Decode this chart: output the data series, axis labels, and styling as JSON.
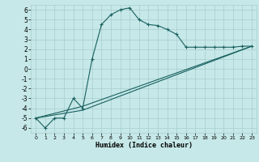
{
  "xlabel": "Humidex (Indice chaleur)",
  "xlim": [
    -0.5,
    23.5
  ],
  "ylim": [
    -6.5,
    6.5
  ],
  "xticks": [
    0,
    1,
    2,
    3,
    4,
    5,
    6,
    7,
    8,
    9,
    10,
    11,
    12,
    13,
    14,
    15,
    16,
    17,
    18,
    19,
    20,
    21,
    22,
    23
  ],
  "yticks": [
    -6,
    -5,
    -4,
    -3,
    -2,
    -1,
    0,
    1,
    2,
    3,
    4,
    5,
    6
  ],
  "bg_color": "#c6e8e8",
  "grid_color": "#a8cccc",
  "line_color": "#1a6060",
  "line1_x": [
    0,
    1,
    2,
    3,
    4,
    5,
    6,
    7,
    8,
    9,
    10,
    11,
    12,
    13,
    14,
    15,
    16,
    17,
    18,
    19,
    20,
    21,
    22,
    23
  ],
  "line1_y": [
    -5.0,
    -6.0,
    -5.0,
    -5.0,
    -3.0,
    -4.0,
    1.0,
    4.5,
    5.5,
    6.0,
    6.2,
    5.0,
    4.5,
    4.4,
    4.0,
    3.5,
    2.2,
    2.2,
    2.2,
    2.2,
    2.2,
    2.2,
    2.3,
    2.3
  ],
  "line2_x": [
    0,
    5,
    23
  ],
  "line2_y": [
    -5.0,
    -3.8,
    2.3
  ],
  "line3_x": [
    0,
    5,
    23
  ],
  "line3_y": [
    -5.0,
    -4.2,
    2.3
  ],
  "tick_fontsize_x": 4.5,
  "tick_fontsize_y": 5.5,
  "xlabel_fontsize": 6.0
}
